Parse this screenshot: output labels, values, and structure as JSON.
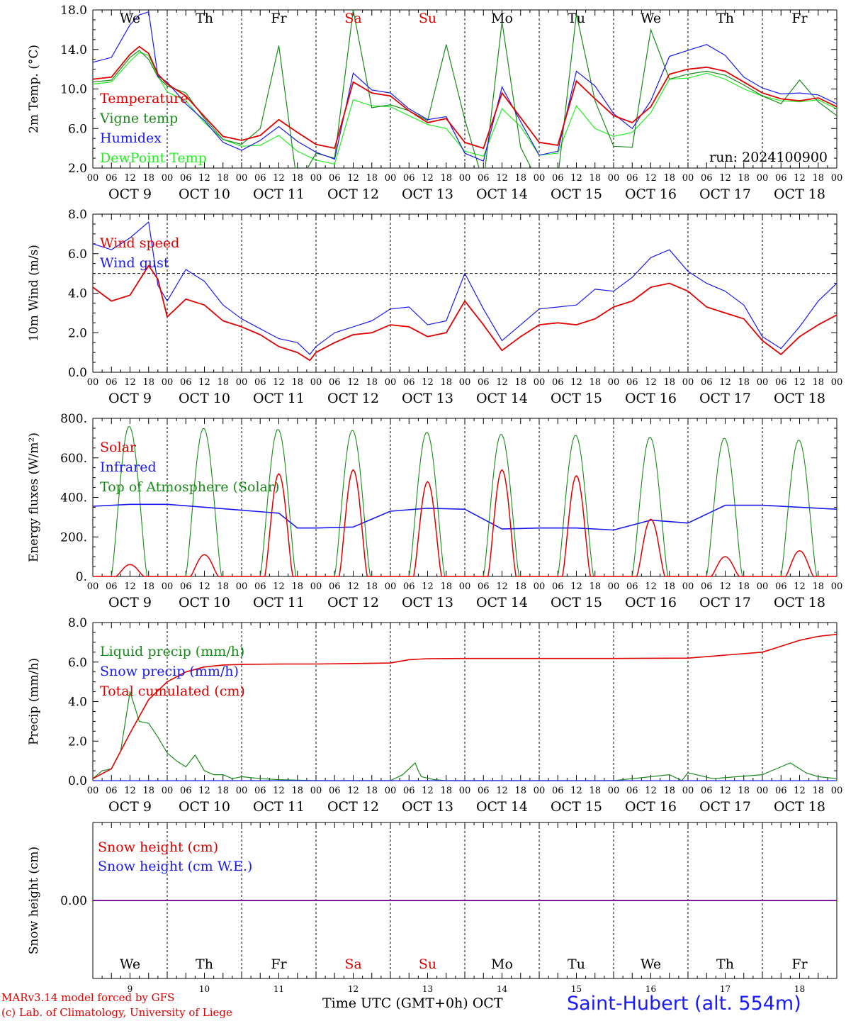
{
  "colors": {
    "red": "#e00000",
    "green": "#1a8a1a",
    "blue": "#1a1aee",
    "lightgreen": "#22ee22",
    "purple": "#7a1a9a",
    "black": "#000000"
  },
  "footer": {
    "credit_line1": "MARv3.14 model forced by GFS",
    "credit_line2": "(c) Lab. of Climatology, University of Liege",
    "xaxis_title": "Time UTC (GMT+0h) OCT",
    "station": "Saint-Hubert (alt. 554m)"
  },
  "days": {
    "weekdays": [
      "We",
      "Th",
      "Fr",
      "Sa",
      "Su",
      "Mo",
      "Tu",
      "We",
      "Th",
      "Fr"
    ],
    "weekend_flags": [
      false,
      false,
      false,
      true,
      true,
      false,
      false,
      false,
      false,
      false
    ],
    "dates": [
      "OCT  9",
      "OCT 10",
      "OCT 11",
      "OCT 12",
      "OCT 13",
      "OCT 14",
      "OCT 15",
      "OCT 16",
      "OCT 17",
      "OCT 18"
    ],
    "day_numbers": [
      "9",
      "10",
      "11",
      "12",
      "13",
      "14",
      "15",
      "16",
      "17",
      "18"
    ],
    "hour_labels": [
      "00",
      "06",
      "12",
      "18"
    ],
    "final_hour_label": "00"
  },
  "chart_data": [
    {
      "type": "line",
      "id": "temp",
      "ylabel": "2m Temp. (°C)",
      "ylim": [
        2,
        18
      ],
      "yticks": [
        2,
        6,
        10,
        14,
        18
      ],
      "ytick_labels": [
        "2.0",
        "6.0",
        "10.0",
        "14.0",
        "18.0"
      ],
      "annotation": "run: 2024100900",
      "show_weekdays": true,
      "x_hours": [
        0,
        6,
        12,
        15,
        18,
        21,
        24,
        30,
        36,
        42,
        48,
        54,
        60,
        66,
        72,
        78,
        84,
        90,
        96,
        102,
        108,
        114,
        120,
        126,
        132,
        138,
        144,
        150,
        156,
        162,
        168,
        174,
        180,
        186,
        192,
        198,
        204,
        210,
        216,
        222,
        228,
        234,
        240
      ],
      "series": [
        {
          "name": "Temperature",
          "color": "red",
          "values": [
            11.0,
            11.2,
            13.5,
            14.3,
            13.6,
            11.5,
            10.5,
            9.3,
            7.2,
            5.2,
            4.8,
            5.3,
            6.9,
            5.6,
            4.4,
            4.0,
            10.7,
            9.6,
            9.3,
            7.8,
            6.6,
            7.0,
            4.6,
            4.0,
            9.6,
            7.1,
            4.6,
            4.3,
            10.8,
            9.0,
            7.3,
            6.6,
            8.2,
            11.5,
            12.0,
            12.2,
            11.8,
            10.7,
            9.6,
            9.0,
            8.8,
            9.1,
            8.2
          ]
        },
        {
          "name": "Vigne temp",
          "color": "green",
          "values": [
            10.7,
            10.9,
            13.2,
            13.9,
            13.0,
            11.2,
            10.3,
            9.6,
            7.0,
            4.9,
            4.4,
            6.0,
            14.4,
            0.2,
            3.5,
            3.0,
            18.0,
            8.1,
            8.4,
            7.8,
            6.8,
            14.5,
            6.9,
            0.5,
            16.8,
            4.1,
            0.4,
            1.0,
            17.6,
            8.8,
            4.2,
            4.1,
            16.0,
            11.0,
            11.5,
            11.8,
            11.4,
            10.4,
            9.3,
            8.5,
            10.9,
            8.7,
            7.3
          ]
        },
        {
          "name": "Humidex",
          "color": "blue",
          "values": [
            12.7,
            13.2,
            16.5,
            17.5,
            17.8,
            11.3,
            10.7,
            8.5,
            6.8,
            4.6,
            3.8,
            4.8,
            6.2,
            4.7,
            3.6,
            2.9,
            11.6,
            9.9,
            9.6,
            8.0,
            6.9,
            7.2,
            3.5,
            2.7,
            10.2,
            6.7,
            3.3,
            3.7,
            11.8,
            10.3,
            7.5,
            6.0,
            8.8,
            13.3,
            13.9,
            14.5,
            13.4,
            11.2,
            10.1,
            9.5,
            9.6,
            9.4,
            8.5
          ]
        },
        {
          "name": "DewPoint Temp",
          "color": "lightgreen",
          "values": [
            10.5,
            10.7,
            12.8,
            13.7,
            13.4,
            11.3,
            9.7,
            8.8,
            6.6,
            4.9,
            4.2,
            4.3,
            5.3,
            3.7,
            2.8,
            2.4,
            8.9,
            8.3,
            8.2,
            7.3,
            6.4,
            6.0,
            3.7,
            3.2,
            8.0,
            6.2,
            3.3,
            3.5,
            8.3,
            6.0,
            5.2,
            5.6,
            7.6,
            11.0,
            11.1,
            11.6,
            11.0,
            10.0,
            9.3,
            8.8,
            8.7,
            8.9,
            8.0
          ]
        }
      ]
    },
    {
      "type": "line",
      "id": "wind",
      "ylabel": "10m Wind (m/s)",
      "ylim": [
        0,
        8
      ],
      "yticks": [
        0,
        2,
        4,
        6,
        8
      ],
      "ytick_labels": [
        "0.0",
        "2.0",
        "4.0",
        "6.0",
        "8.0"
      ],
      "reference_line": 5.0,
      "x_hours": [
        0,
        6,
        12,
        18,
        21,
        24,
        30,
        36,
        42,
        48,
        54,
        60,
        66,
        70,
        72,
        78,
        84,
        90,
        96,
        102,
        108,
        114,
        120,
        126,
        132,
        138,
        144,
        150,
        156,
        162,
        168,
        174,
        180,
        186,
        192,
        198,
        204,
        210,
        216,
        222,
        228,
        234,
        240
      ],
      "series": [
        {
          "name": "Wind speed",
          "color": "red",
          "values": [
            4.3,
            3.6,
            3.9,
            5.4,
            4.7,
            2.8,
            3.7,
            3.4,
            2.6,
            2.3,
            1.9,
            1.3,
            1.0,
            0.6,
            1.0,
            1.5,
            1.9,
            2.0,
            2.4,
            2.3,
            1.8,
            2.0,
            3.6,
            2.4,
            1.1,
            1.8,
            2.4,
            2.5,
            2.4,
            2.7,
            3.3,
            3.6,
            4.3,
            4.5,
            4.1,
            3.3,
            3.0,
            2.7,
            1.6,
            0.9,
            1.8,
            2.4,
            2.9
          ]
        },
        {
          "name": "Wind gust",
          "color": "blue",
          "values": [
            6.5,
            6.2,
            6.8,
            7.6,
            4.4,
            3.6,
            5.2,
            4.6,
            3.4,
            2.7,
            2.2,
            1.7,
            1.5,
            0.9,
            1.3,
            2.0,
            2.3,
            2.6,
            3.2,
            3.3,
            2.4,
            2.6,
            5.0,
            3.2,
            1.6,
            2.4,
            3.2,
            3.3,
            3.4,
            4.2,
            4.1,
            4.8,
            5.8,
            6.2,
            5.1,
            4.5,
            4.1,
            3.4,
            1.8,
            1.2,
            2.3,
            3.6,
            4.5
          ]
        }
      ]
    },
    {
      "type": "line",
      "id": "energy",
      "ylabel": "Energy fluxes (W/m²)",
      "ylim": [
        0,
        800
      ],
      "yticks": [
        0,
        200,
        400,
        600,
        800
      ],
      "ytick_labels": [
        "0.",
        "200.",
        "400.",
        "600.",
        "800."
      ],
      "series": [
        {
          "name": "Solar",
          "color": "red",
          "daily_peaks": [
            60,
            110,
            520,
            540,
            480,
            540,
            510,
            290,
            100,
            130
          ]
        },
        {
          "name": "Infrared",
          "color": "blue",
          "x_hours": [
            0,
            12,
            24,
            48,
            60,
            66,
            72,
            84,
            96,
            108,
            120,
            132,
            144,
            156,
            168,
            180,
            192,
            204,
            216,
            228,
            240
          ],
          "values": [
            355,
            365,
            365,
            335,
            320,
            245,
            245,
            250,
            330,
            345,
            340,
            240,
            245,
            245,
            235,
            285,
            270,
            360,
            360,
            350,
            340
          ]
        },
        {
          "name": "Top of Atmosphere (Solar)",
          "color": "green",
          "daily_peaks": [
            760,
            750,
            745,
            740,
            730,
            720,
            715,
            705,
            700,
            690
          ]
        }
      ]
    },
    {
      "type": "line",
      "id": "precip",
      "ylabel": "Precip (mm/h)",
      "ylim": [
        0,
        8
      ],
      "yticks": [
        0,
        2,
        4,
        6,
        8
      ],
      "ytick_labels": [
        "0.0",
        "2.0",
        "4.0",
        "6.0",
        "8.0"
      ],
      "series": [
        {
          "name": "Liquid precip (mm/h)",
          "color": "green",
          "x_hours": [
            0,
            3,
            6,
            9,
            12,
            15,
            18,
            21,
            24,
            27,
            30,
            33,
            36,
            39,
            42,
            45,
            48,
            54,
            60,
            72,
            96,
            100,
            104,
            105,
            106,
            110,
            114,
            120,
            144,
            168,
            186,
            190,
            192,
            200,
            216,
            222,
            225,
            228,
            230,
            234,
            240
          ],
          "values": [
            0.1,
            0.5,
            0.6,
            1.5,
            4.5,
            3.0,
            2.9,
            2.2,
            1.4,
            1.0,
            0.7,
            1.3,
            0.5,
            0.3,
            0.3,
            0.1,
            0.2,
            0.1,
            0.05,
            0.0,
            0.0,
            0.3,
            0.9,
            0.5,
            0.2,
            0.05,
            0.0,
            0.0,
            0.0,
            0.0,
            0.3,
            0.0,
            0.4,
            0.1,
            0.3,
            0.7,
            0.9,
            0.6,
            0.4,
            0.2,
            0.1
          ]
        },
        {
          "name": "Snow precip (mm/h)",
          "color": "blue",
          "x_hours": [
            0,
            240
          ],
          "values": [
            0,
            0
          ]
        },
        {
          "name": "Total cumulated (cm)",
          "color": "red",
          "x_hours": [
            0,
            6,
            12,
            18,
            24,
            30,
            36,
            42,
            48,
            60,
            72,
            96,
            102,
            108,
            120,
            144,
            168,
            192,
            204,
            216,
            222,
            228,
            234,
            240
          ],
          "values": [
            0.1,
            0.6,
            2.4,
            4.1,
            5.0,
            5.5,
            5.75,
            5.85,
            5.88,
            5.9,
            5.9,
            5.95,
            6.12,
            6.17,
            6.18,
            6.18,
            6.18,
            6.2,
            6.35,
            6.5,
            6.8,
            7.1,
            7.3,
            7.4
          ]
        }
      ]
    },
    {
      "type": "line",
      "id": "snow",
      "ylabel": "Snow height (cm)",
      "ytick_labels": [
        "0.00"
      ],
      "show_weekdays_bottom": true,
      "series": [
        {
          "name": "Snow height (cm)",
          "color": "red",
          "x_hours": [
            0,
            240
          ],
          "values": [
            0,
            0
          ]
        },
        {
          "name": "Snow height (cm W.E.)",
          "color": "blue",
          "x_hours": [
            0,
            240
          ],
          "values": [
            0,
            0
          ]
        }
      ]
    }
  ]
}
